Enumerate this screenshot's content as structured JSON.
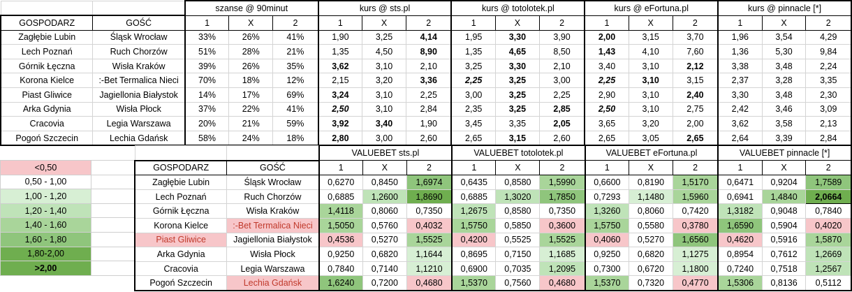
{
  "top": {
    "group_headers": [
      "szanse @ 90minut",
      "kurs @ sts.pl",
      "kurs @ totolotek.pl",
      "kurs @ eFortuna.pl",
      "kurs @ pinnacle [*]"
    ],
    "home_header": "GOSPODARZ",
    "away_header": "GOŚĆ",
    "sub_headers": [
      "1",
      "X",
      "2"
    ],
    "rows": [
      {
        "home": "Zagłębie Lubin",
        "away": "Śląsk Wrocław",
        "p": [
          "33%",
          "26%",
          "41%"
        ],
        "sts": [
          "1,90",
          "3,25",
          "4,14"
        ],
        "toto": [
          "1,95",
          "3,30",
          "3,90"
        ],
        "efo": [
          "2,00",
          "3,15",
          "3,70"
        ],
        "pin": [
          "1,96",
          "3,54",
          "4,29"
        ]
      },
      {
        "home": "Lech Poznań",
        "away": "Ruch Chorzów",
        "p": [
          "51%",
          "28%",
          "21%"
        ],
        "sts": [
          "1,35",
          "4,50",
          "8,90"
        ],
        "toto": [
          "1,35",
          "4,65",
          "8,50"
        ],
        "efo": [
          "1,43",
          "4,10",
          "7,60"
        ],
        "pin": [
          "1,36",
          "5,30",
          "9,84"
        ]
      },
      {
        "home": "Górnik Łęczna",
        "away": "Wisła Kraków",
        "p": [
          "39%",
          "26%",
          "35%"
        ],
        "sts": [
          "3,62",
          "3,10",
          "2,10"
        ],
        "toto": [
          "3,25",
          "3,30",
          "2,10"
        ],
        "efo": [
          "3,40",
          "3,10",
          "2,12"
        ],
        "pin": [
          "3,38",
          "3,48",
          "2,24"
        ]
      },
      {
        "home": "Korona Kielce",
        "away": ":-Bet Termalica Nieci",
        "p": [
          "70%",
          "18%",
          "12%"
        ],
        "sts": [
          "2,15",
          "3,20",
          "3,36"
        ],
        "toto": [
          "2,25",
          "3,25",
          "3,00"
        ],
        "efo": [
          "2,25",
          "3,10",
          "3,15"
        ],
        "pin": [
          "2,37",
          "3,28",
          "3,35"
        ]
      },
      {
        "home": "Piast Gliwice",
        "away": "Jagiellonia Białystok",
        "p": [
          "14%",
          "17%",
          "69%"
        ],
        "sts": [
          "3,24",
          "3,10",
          "2,25"
        ],
        "toto": [
          "3,00",
          "3,25",
          "2,25"
        ],
        "efo": [
          "2,90",
          "3,10",
          "2,40"
        ],
        "pin": [
          "3,30",
          "3,48",
          "2,30"
        ]
      },
      {
        "home": "Arka Gdynia",
        "away": "Wisła Płock",
        "p": [
          "37%",
          "22%",
          "41%"
        ],
        "sts": [
          "2,50",
          "3,10",
          "2,84"
        ],
        "toto": [
          "2,35",
          "3,25",
          "2,85"
        ],
        "efo": [
          "2,50",
          "3,10",
          "2,75"
        ],
        "pin": [
          "2,42",
          "3,46",
          "3,09"
        ]
      },
      {
        "home": "Cracovia",
        "away": "Legia Warszawa",
        "p": [
          "20%",
          "21%",
          "59%"
        ],
        "sts": [
          "3,92",
          "3,40",
          "1,90"
        ],
        "toto": [
          "3,45",
          "3,35",
          "2,05"
        ],
        "efo": [
          "3,65",
          "3,20",
          "2,00"
        ],
        "pin": [
          "3,62",
          "3,58",
          "2,13"
        ]
      },
      {
        "home": "Pogoń Szczecin",
        "away": "Lechia Gdańsk",
        "p": [
          "58%",
          "24%",
          "18%"
        ],
        "sts": [
          "2,80",
          "3,00",
          "2,60"
        ],
        "toto": [
          "2,65",
          "3,15",
          "2,60"
        ],
        "efo": [
          "2,65",
          "3,05",
          "2,65"
        ],
        "pin": [
          "2,64",
          "3,39",
          "2,84"
        ]
      }
    ]
  },
  "valuebet": {
    "group_headers": [
      "VALUEBET sts.pl",
      "VALUEBET totolotek.pl",
      "VALUEBET eFortuna.pl",
      "VALUEBET pinnacle [*]"
    ],
    "home_header": "GOSPODARZ",
    "away_header": "GOŚĆ",
    "sub_headers": [
      "1",
      "X",
      "2"
    ],
    "rows": [
      {
        "home": "Zagłębie Lubin",
        "away": "Śląsk Wrocław",
        "sts": [
          "0,6270",
          "0,8450",
          "1,6974"
        ],
        "toto": [
          "0,6435",
          "0,8580",
          "1,5990"
        ],
        "efo": [
          "0,6600",
          "0,8190",
          "1,5170"
        ],
        "pin": [
          "0,6471",
          "0,9204",
          "1,7589"
        ]
      },
      {
        "home": "Lech Poznań",
        "away": "Ruch Chorzów",
        "sts": [
          "0,6885",
          "1,2600",
          "1,8690"
        ],
        "toto": [
          "0,6885",
          "1,3020",
          "1,7850"
        ],
        "efo": [
          "0,7293",
          "1,1480",
          "1,5960"
        ],
        "pin": [
          "0,6941",
          "1,4840",
          "2,0664"
        ]
      },
      {
        "home": "Górnik Łęczna",
        "away": "Wisła Kraków",
        "sts": [
          "1,4118",
          "0,8060",
          "0,7350"
        ],
        "toto": [
          "1,2675",
          "0,8580",
          "0,7350"
        ],
        "efo": [
          "1,3260",
          "0,8060",
          "0,7420"
        ],
        "pin": [
          "1,3182",
          "0,9048",
          "0,7840"
        ]
      },
      {
        "home": "Korona Kielce",
        "away": ":-Bet Termalica Nieci",
        "sts": [
          "1,5050",
          "0,5760",
          "0,4032"
        ],
        "toto": [
          "1,5750",
          "0,5850",
          "0,3600"
        ],
        "efo": [
          "1,5750",
          "0,5580",
          "0,3780"
        ],
        "pin": [
          "1,6590",
          "0,5904",
          "0,4020"
        ]
      },
      {
        "home": "Piast Gliwice",
        "away": "Jagiellonia Białystok",
        "sts": [
          "0,4536",
          "0,5270",
          "1,5525"
        ],
        "toto": [
          "0,4200",
          "0,5525",
          "1,5525"
        ],
        "efo": [
          "0,4060",
          "0,5270",
          "1,6560"
        ],
        "pin": [
          "0,4620",
          "0,5916",
          "1,5870"
        ]
      },
      {
        "home": "Arka Gdynia",
        "away": "Wisła Płock",
        "sts": [
          "0,9250",
          "0,6820",
          "1,1644"
        ],
        "toto": [
          "0,8695",
          "0,7150",
          "1,1685"
        ],
        "efo": [
          "0,9250",
          "0,6820",
          "1,1275"
        ],
        "pin": [
          "0,8954",
          "0,7612",
          "1,2669"
        ]
      },
      {
        "home": "Cracovia",
        "away": "Legia Warszawa",
        "sts": [
          "0,7840",
          "0,7140",
          "1,1210"
        ],
        "toto": [
          "0,6900",
          "0,7035",
          "1,2095"
        ],
        "efo": [
          "0,7300",
          "0,6720",
          "1,1800"
        ],
        "pin": [
          "0,7240",
          "0,7518",
          "1,2567"
        ]
      },
      {
        "home": "Pogoń Szczecin",
        "away": "Lechia Gdańsk",
        "sts": [
          "1,6240",
          "0,7200",
          "0,4680"
        ],
        "toto": [
          "1,5370",
          "0,7560",
          "0,4680"
        ],
        "efo": [
          "1,5370",
          "0,7320",
          "0,4770"
        ],
        "pin": [
          "1,5306",
          "0,8136",
          "0,5112"
        ]
      }
    ]
  },
  "legend": [
    "<0,50",
    "0,50 - 1,00",
    "1,00 - 1,20",
    "1,20 - 1,40",
    "1,40 - 1,60",
    "1,60 - 1,80",
    "1,80-2,00",
    ">2,00"
  ],
  "colors": {
    "below_050": "#f7c6c9",
    "r050_100": "#ffffff",
    "r100_120": "#d7efd4",
    "r120_140": "#bfe3b8",
    "r140_160": "#a9d59a",
    "r160_180": "#8fc57c",
    "r180_200": "#6fae4f",
    "above_200": "#5f9e3f"
  }
}
